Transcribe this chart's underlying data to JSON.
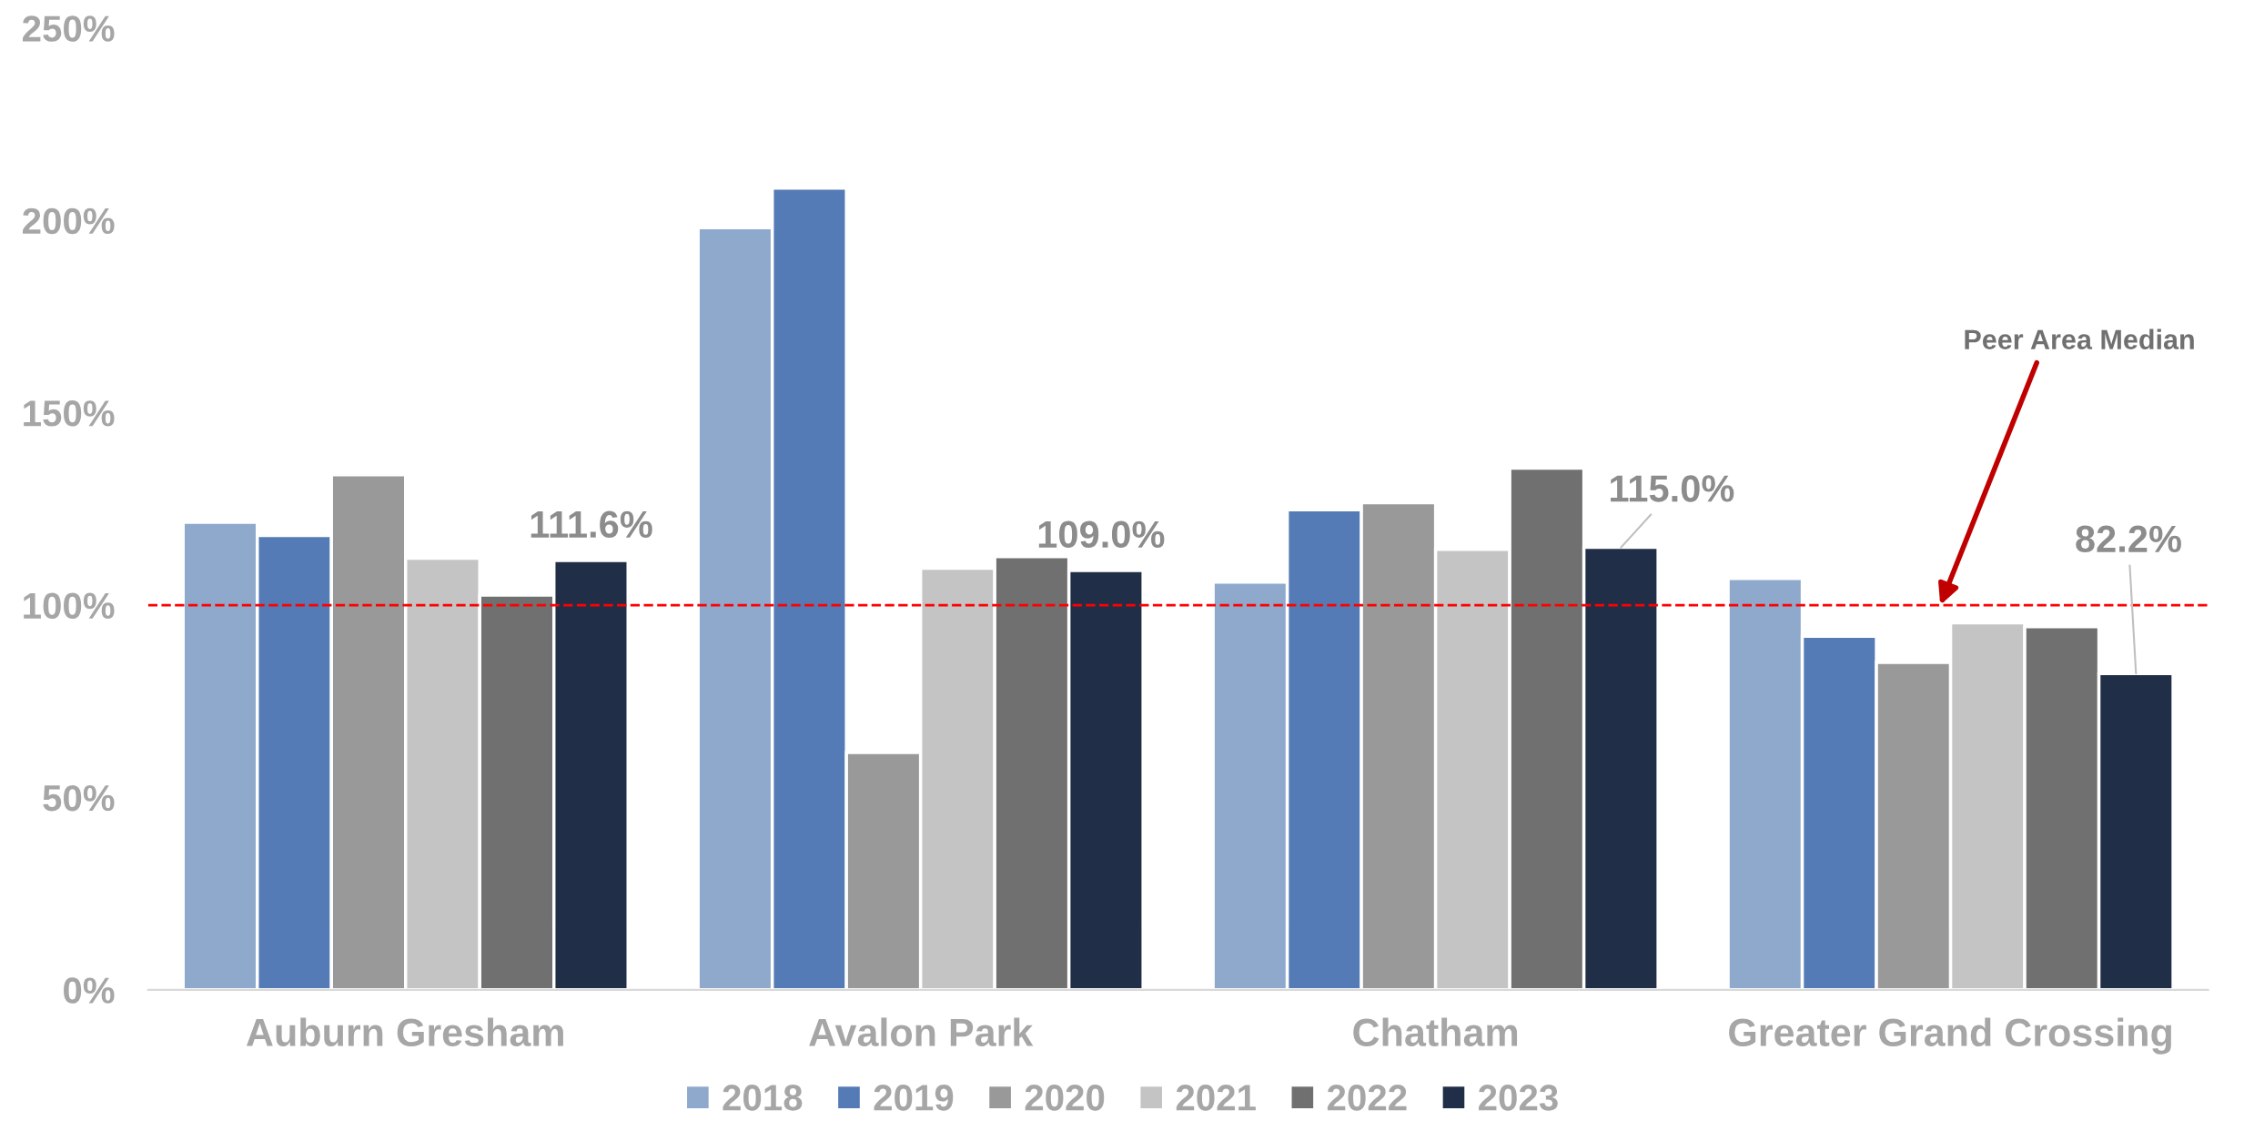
{
  "chart_data": {
    "type": "bar",
    "categories": [
      "Auburn Gresham",
      "Avalon Park",
      "Chatham",
      "Greater Grand Crossing"
    ],
    "series": [
      {
        "name": "2018",
        "color": "#8fa9cd",
        "values": [
          121.5,
          198.1,
          106.0,
          106.9
        ]
      },
      {
        "name": "2019",
        "color": "#547bb5",
        "values": [
          118.1,
          208.4,
          124.8,
          91.9
        ]
      },
      {
        "name": "2020",
        "color": "#999999",
        "values": [
          133.9,
          61.7,
          126.6,
          85.1
        ]
      },
      {
        "name": "2021",
        "color": "#c4c4c4",
        "values": [
          112.2,
          109.6,
          114.5,
          95.4
        ]
      },
      {
        "name": "2022",
        "color": "#707070",
        "values": [
          102.6,
          112.6,
          135.6,
          94.4
        ]
      },
      {
        "name": "2023",
        "color": "#202e47",
        "values": [
          111.6,
          109.0,
          115.0,
          82.2
        ],
        "value_labels": [
          "111.6%",
          "109.0%",
          "115.0%",
          "82.2%"
        ]
      }
    ],
    "ylim": [
      0,
      250
    ],
    "yticks": [
      {
        "value": 0,
        "label": "0%"
      },
      {
        "value": 50,
        "label": "50%"
      },
      {
        "value": 100,
        "label": "100%"
      },
      {
        "value": 150,
        "label": "150%"
      },
      {
        "value": 200,
        "label": "200%"
      },
      {
        "value": 250,
        "label": "250%"
      }
    ],
    "legend": "bottom",
    "ref_lines": [
      {
        "axis": "y",
        "value": 100,
        "label": "Peer Area Median",
        "color": "#ff0000",
        "line_style": "dashed"
      }
    ]
  }
}
